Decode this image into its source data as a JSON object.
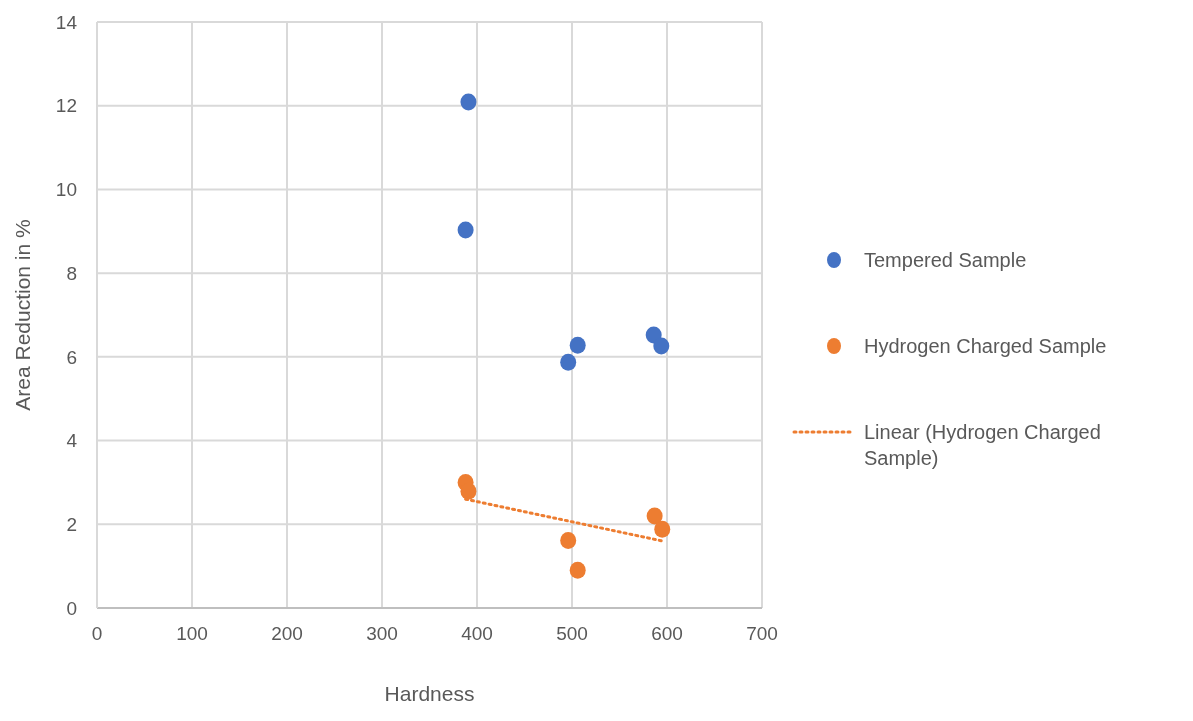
{
  "chart_data": {
    "type": "scatter",
    "xlabel": "Hardness",
    "ylabel": "Area Reduction in %",
    "xlim": [
      0,
      700
    ],
    "xticks": [
      0,
      100,
      200,
      300,
      400,
      500,
      600,
      700
    ],
    "ylim": [
      0,
      14
    ],
    "yticks": [
      0,
      2,
      4,
      6,
      8,
      10,
      12,
      14
    ],
    "grid": true,
    "legend": "right",
    "series": [
      {
        "name": "Tempered Sample",
        "color": "#4472c4",
        "marker": "circle",
        "x": [
          391,
          388,
          496,
          506,
          586,
          594
        ],
        "values": [
          12.09,
          9.03,
          5.87,
          6.28,
          6.52,
          6.26
        ]
      },
      {
        "name": "Hydrogen Charged Sample",
        "color": "#ed7d31",
        "marker": "circle",
        "x": [
          388,
          391,
          496,
          506,
          587,
          595
        ],
        "values": [
          3.0,
          2.79,
          1.61,
          0.9,
          2.2,
          1.88
        ]
      },
      {
        "name": "Linear (Hydrogen Charged Sample)",
        "type": "line",
        "line_style": "dotted",
        "marker": "none",
        "color": "#ed7d31",
        "x": [
          388,
          595
        ],
        "values": [
          2.6,
          1.6
        ]
      }
    ]
  }
}
